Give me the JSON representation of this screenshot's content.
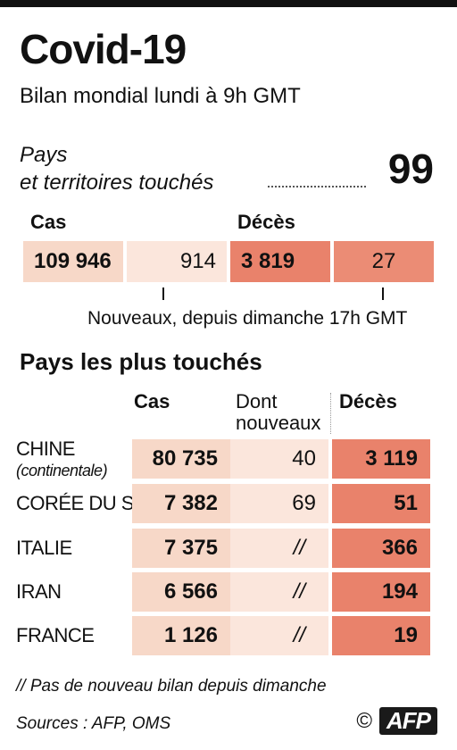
{
  "title": "Covid-19",
  "subtitle": "Bilan mondial lundi à 9h GMT",
  "countries_label_line1": "Pays",
  "countries_label_line2": "et territoires touchés",
  "countries_count": "99",
  "global": {
    "cases_header": "Cas",
    "deaths_header": "Décès",
    "cases_total": "109 946",
    "cases_new": "914",
    "deaths_total": "3 819",
    "deaths_new": "27",
    "new_note": "Nouveaux, depuis dimanche 17h GMT"
  },
  "table": {
    "section_title": "Pays les plus touchés",
    "col_cases": "Cas",
    "col_new_line1": "Dont",
    "col_new_line2": "nouveaux",
    "col_deaths": "Décès"
  },
  "chart_data": {
    "type": "table",
    "title": "Covid-19",
    "subtitle": "Bilan mondial lundi à 9h GMT",
    "columns": [
      "Cas",
      "Dont nouveaux",
      "Décès"
    ],
    "rows": [
      {
        "country": "CHINE",
        "note": "(continentale)",
        "cases": "80 735",
        "new": "40",
        "deaths": "3 119"
      },
      {
        "country": "CORÉE DU S.",
        "note": "",
        "cases": "7 382",
        "new": "69",
        "deaths": "51"
      },
      {
        "country": "ITALIE",
        "note": "",
        "cases": "7 375",
        "new": "//",
        "deaths": "366"
      },
      {
        "country": "IRAN",
        "note": "",
        "cases": "6 566",
        "new": "//",
        "deaths": "194"
      },
      {
        "country": "FRANCE",
        "note": "",
        "cases": "1 126",
        "new": "//",
        "deaths": "19"
      }
    ],
    "global": {
      "cases": "109 946",
      "new_cases": "914",
      "deaths": "3 819",
      "new_deaths": "27",
      "countries": "99"
    }
  },
  "footnote": "// Pas de nouveau bilan depuis dimanche",
  "sources": "Sources : AFP, OMS",
  "copyright": "©",
  "agency": "AFP",
  "colors": {
    "cases": "#f7d8c8",
    "new": "#fbe6dc",
    "deaths": "#e9826b",
    "new_deaths": "#eb8c75"
  }
}
